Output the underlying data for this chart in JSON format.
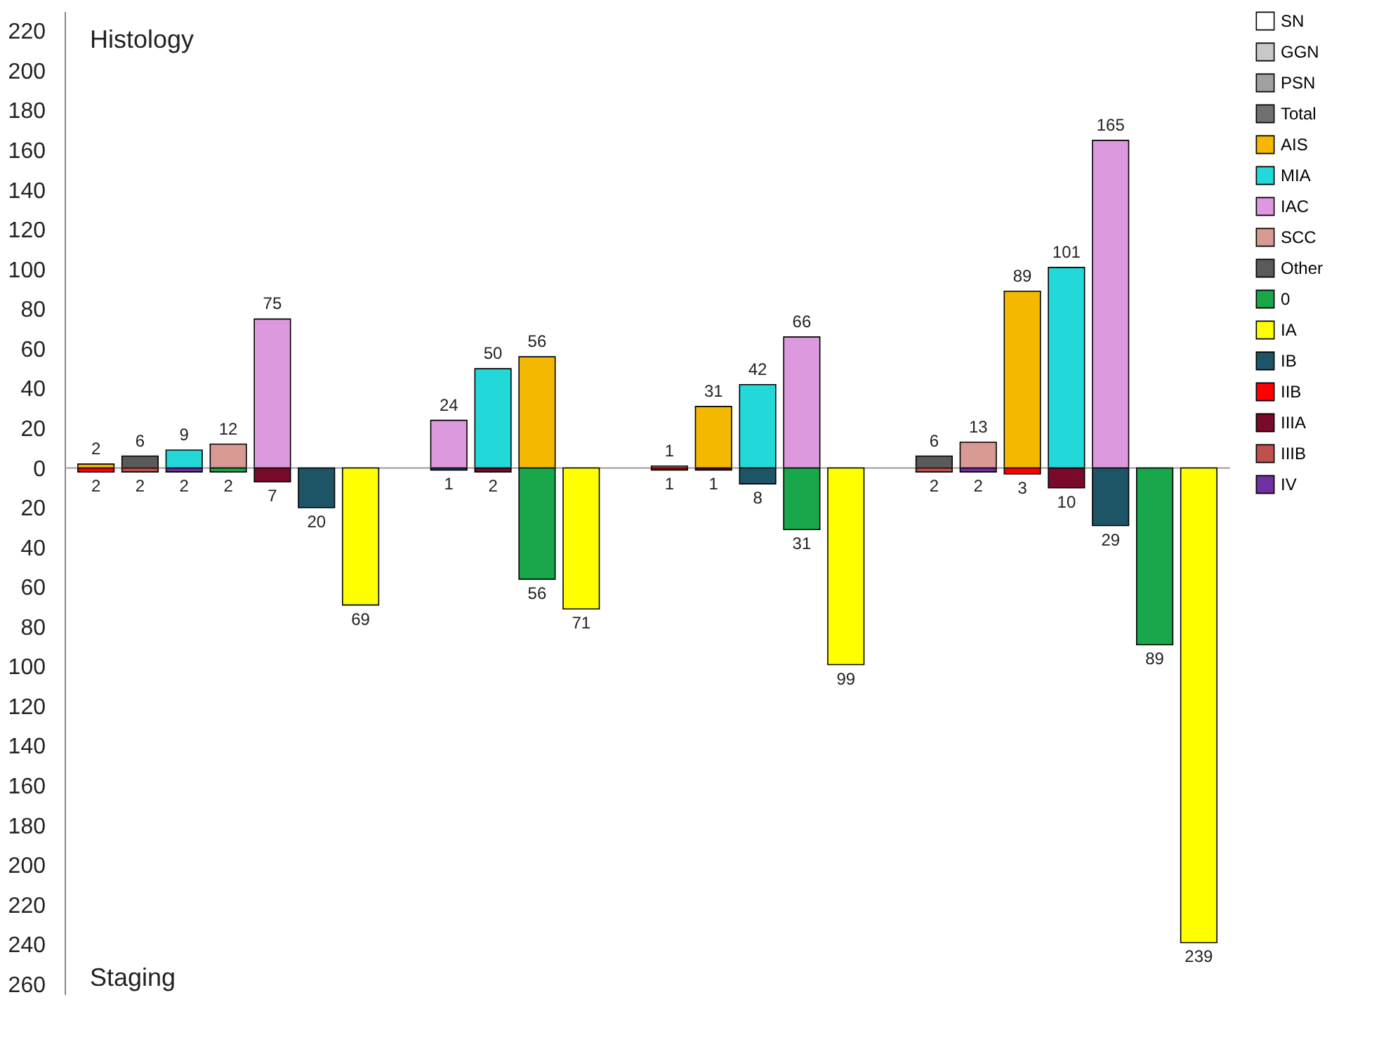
{
  "chart_data": {
    "type": "bar",
    "categories": [
      null,
      null,
      null,
      null,
      null,
      null,
      null,
      null,
      null,
      null,
      null,
      null,
      null,
      null,
      null,
      null,
      null,
      null,
      null,
      null,
      null,
      null,
      null,
      null,
      null,
      null
    ],
    "series": [
      {
        "name": "SN",
        "color": "#ffffff",
        "values": [
          null,
          null,
          null,
          null,
          null,
          null,
          null,
          null,
          null,
          null,
          null,
          null,
          null,
          null,
          null,
          null,
          null,
          null,
          null,
          null,
          null,
          null,
          null,
          null,
          null,
          null
        ]
      },
      {
        "name": "GGN",
        "color": "#c8c8c8",
        "values": [
          null,
          null,
          null,
          null,
          null,
          null,
          null,
          null,
          null,
          null,
          null,
          null,
          null,
          null,
          null,
          null,
          null,
          null,
          null,
          null,
          null,
          null,
          null,
          null,
          null,
          null
        ]
      },
      {
        "name": "PSN",
        "color": "#a0a0a0",
        "values": [
          null,
          null,
          null,
          null,
          null,
          null,
          null,
          null,
          null,
          null,
          null,
          null,
          null,
          null,
          null,
          null,
          null,
          null,
          null,
          null,
          null,
          null,
          null,
          null,
          null,
          null
        ]
      },
      {
        "name": "Total",
        "color": "#707070",
        "values": [
          null,
          null,
          null,
          null,
          null,
          null,
          null,
          null,
          null,
          null,
          null,
          null,
          null,
          null,
          null,
          null,
          null,
          null,
          null,
          null,
          null,
          null,
          null,
          null,
          null,
          null
        ]
      },
      {
        "name": "AIS",
        "color": "#f5b800",
        "values": [
          2,
          null,
          null,
          null,
          null,
          null,
          null,
          null,
          null,
          null,
          56,
          null,
          null,
          null,
          31,
          null,
          null,
          null,
          null,
          null,
          null,
          89,
          null,
          null,
          null,
          null
        ]
      },
      {
        "name": "MIA",
        "color": "#22d8d8",
        "values": [
          null,
          null,
          9,
          null,
          null,
          null,
          null,
          null,
          null,
          50,
          null,
          null,
          null,
          null,
          null,
          42,
          null,
          null,
          null,
          null,
          null,
          null,
          101,
          null,
          null,
          null
        ]
      },
      {
        "name": "IAC",
        "color": "#dd99dd",
        "values": [
          null,
          null,
          null,
          null,
          75,
          null,
          null,
          null,
          24,
          null,
          null,
          null,
          null,
          null,
          null,
          null,
          66,
          null,
          null,
          null,
          null,
          null,
          null,
          165,
          null,
          null
        ]
      },
      {
        "name": "SCC",
        "color": "#d99a94",
        "values": [
          null,
          null,
          null,
          12,
          null,
          null,
          null,
          null,
          null,
          null,
          null,
          null,
          null,
          1,
          null,
          null,
          null,
          null,
          null,
          null,
          13,
          null,
          null,
          null,
          null,
          null
        ]
      },
      {
        "name": "Other",
        "color": "#5a5a5a",
        "values": [
          null,
          6,
          null,
          null,
          null,
          null,
          null,
          null,
          null,
          null,
          null,
          null,
          null,
          null,
          null,
          null,
          null,
          null,
          null,
          6,
          null,
          null,
          null,
          null,
          null,
          null
        ]
      },
      {
        "name": "0",
        "color": "#1aa64a",
        "axis": "y2",
        "values": [
          null,
          null,
          null,
          2,
          null,
          null,
          null,
          null,
          null,
          null,
          56,
          null,
          null,
          null,
          null,
          null,
          31,
          null,
          null,
          null,
          null,
          null,
          null,
          null,
          89,
          null
        ]
      },
      {
        "name": "IA",
        "color": "#ffff00",
        "axis": "y2",
        "values": [
          null,
          null,
          null,
          null,
          null,
          null,
          69,
          null,
          null,
          null,
          null,
          71,
          null,
          null,
          null,
          null,
          null,
          99,
          null,
          null,
          null,
          null,
          null,
          null,
          null,
          239
        ]
      },
      {
        "name": "IB",
        "color": "#1e5566",
        "axis": "y2",
        "values": [
          null,
          null,
          null,
          null,
          null,
          20,
          null,
          null,
          1,
          null,
          null,
          null,
          null,
          null,
          null,
          8,
          null,
          null,
          null,
          null,
          null,
          null,
          null,
          29,
          null,
          null
        ]
      },
      {
        "name": "IIB",
        "color": "#ff0000",
        "axis": "y2",
        "values": [
          2,
          null,
          null,
          null,
          null,
          null,
          null,
          null,
          null,
          null,
          null,
          null,
          null,
          1,
          null,
          null,
          null,
          null,
          null,
          null,
          null,
          3,
          null,
          null,
          null,
          null
        ]
      },
      {
        "name": "IIIA",
        "color": "#7a0a2a",
        "axis": "y2",
        "values": [
          null,
          null,
          null,
          null,
          7,
          null,
          null,
          null,
          null,
          2,
          null,
          null,
          null,
          null,
          1,
          null,
          null,
          null,
          null,
          null,
          null,
          null,
          10,
          null,
          null,
          null
        ]
      },
      {
        "name": "IIIB",
        "color": "#c0504d",
        "axis": "y2",
        "values": [
          null,
          2,
          null,
          null,
          null,
          null,
          null,
          null,
          null,
          null,
          null,
          null,
          null,
          null,
          null,
          null,
          null,
          null,
          null,
          2,
          null,
          null,
          null,
          null,
          null,
          null
        ]
      },
      {
        "name": "IV",
        "color": "#7030a0",
        "axis": "y2",
        "values": [
          null,
          null,
          2,
          null,
          null,
          null,
          null,
          null,
          null,
          null,
          null,
          null,
          null,
          null,
          null,
          null,
          null,
          null,
          null,
          null,
          2,
          null,
          null,
          null,
          null,
          null
        ]
      }
    ],
    "ylim": [
      -265,
      230
    ],
    "yticks": [
      0,
      20,
      40,
      60,
      80,
      100,
      120,
      140,
      160,
      180,
      200,
      220
    ],
    "y2lim": [
      265,
      -230
    ],
    "y2ticks": [
      20,
      40,
      60,
      80,
      100,
      120,
      140,
      160,
      180,
      200,
      220,
      240,
      260
    ],
    "ref_lines": [
      {
        "axis": "y",
        "value": 0,
        "color": "#999999"
      }
    ],
    "annotations": [
      "Histology",
      "Staging"
    ],
    "data_labels": true,
    "stacked": true,
    "tick_labels": "y",
    "legend": "top right",
    "grid": false
  }
}
